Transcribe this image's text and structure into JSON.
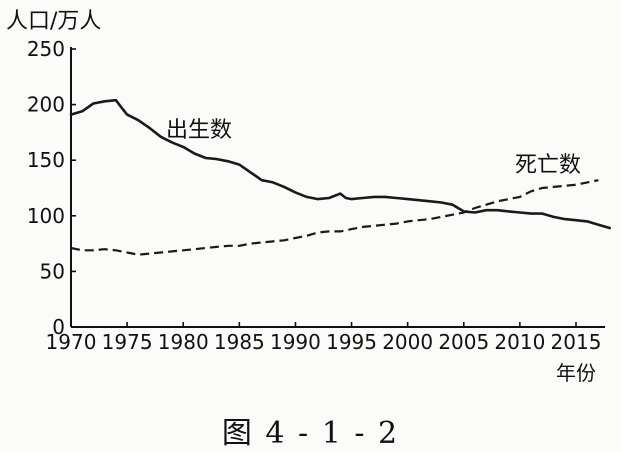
{
  "chart_data": {
    "type": "line",
    "ylabel": "人口/万人",
    "xlabel": "年份",
    "ylim": [
      0,
      250
    ],
    "yticks": [
      0,
      50,
      100,
      150,
      200,
      250
    ],
    "xlim": [
      1970,
      2018
    ],
    "xticks": [
      1970,
      1975,
      1980,
      1985,
      1990,
      1995,
      2000,
      2005,
      2010,
      2015
    ],
    "grid": false,
    "series": [
      {
        "name": "出生数",
        "style": "solid",
        "points": [
          [
            1970,
            191
          ],
          [
            1971,
            194
          ],
          [
            1972,
            201
          ],
          [
            1973,
            203
          ],
          [
            1974,
            204
          ],
          [
            1974.6,
            196
          ],
          [
            1975,
            191
          ],
          [
            1976,
            186
          ],
          [
            1977,
            179
          ],
          [
            1978,
            171
          ],
          [
            1979,
            166
          ],
          [
            1980,
            162
          ],
          [
            1981,
            156
          ],
          [
            1982,
            152
          ],
          [
            1983,
            151
          ],
          [
            1984,
            149
          ],
          [
            1985,
            146
          ],
          [
            1986,
            139
          ],
          [
            1987,
            132
          ],
          [
            1988,
            130
          ],
          [
            1989,
            126
          ],
          [
            1990,
            121
          ],
          [
            1991,
            117
          ],
          [
            1992,
            115
          ],
          [
            1993,
            116
          ],
          [
            1994,
            120
          ],
          [
            1994.5,
            116
          ],
          [
            1995,
            115
          ],
          [
            1996,
            116
          ],
          [
            1997,
            117
          ],
          [
            1998,
            117
          ],
          [
            1999,
            116
          ],
          [
            2000,
            115
          ],
          [
            2001,
            114
          ],
          [
            2002,
            113
          ],
          [
            2003,
            112
          ],
          [
            2004,
            110
          ],
          [
            2005,
            104
          ],
          [
            2006,
            103
          ],
          [
            2007,
            105
          ],
          [
            2008,
            105
          ],
          [
            2009,
            104
          ],
          [
            2010,
            103
          ],
          [
            2011,
            102
          ],
          [
            2012,
            102
          ],
          [
            2013,
            99
          ],
          [
            2014,
            97
          ],
          [
            2015,
            96
          ],
          [
            2016,
            95
          ],
          [
            2017,
            92
          ],
          [
            2018,
            89
          ]
        ]
      },
      {
        "name": "死亡数",
        "style": "dashed",
        "points": [
          [
            1970,
            71
          ],
          [
            1971,
            69
          ],
          [
            1972,
            69
          ],
          [
            1973,
            70
          ],
          [
            1974,
            69
          ],
          [
            1975,
            67
          ],
          [
            1976,
            65
          ],
          [
            1977,
            66
          ],
          [
            1978,
            67
          ],
          [
            1979,
            68
          ],
          [
            1980,
            69
          ],
          [
            1981,
            70
          ],
          [
            1982,
            71
          ],
          [
            1983,
            72
          ],
          [
            1984,
            73
          ],
          [
            1985,
            73
          ],
          [
            1986,
            75
          ],
          [
            1987,
            76
          ],
          [
            1988,
            77
          ],
          [
            1989,
            78
          ],
          [
            1990,
            80
          ],
          [
            1991,
            82
          ],
          [
            1992,
            85
          ],
          [
            1993,
            86
          ],
          [
            1994,
            86
          ],
          [
            1995,
            88
          ],
          [
            1996,
            90
          ],
          [
            1997,
            91
          ],
          [
            1998,
            92
          ],
          [
            1999,
            93
          ],
          [
            2000,
            95
          ],
          [
            2001,
            96
          ],
          [
            2002,
            97
          ],
          [
            2003,
            99
          ],
          [
            2004,
            101
          ],
          [
            2005,
            103
          ],
          [
            2006,
            107
          ],
          [
            2007,
            110
          ],
          [
            2008,
            113
          ],
          [
            2009,
            115
          ],
          [
            2010,
            117
          ],
          [
            2011,
            122
          ],
          [
            2012,
            125
          ],
          [
            2013,
            126
          ],
          [
            2014,
            127
          ],
          [
            2015,
            128
          ],
          [
            2016,
            130
          ],
          [
            2017,
            132
          ]
        ]
      }
    ]
  },
  "caption": "图 4 - 1 - 2"
}
